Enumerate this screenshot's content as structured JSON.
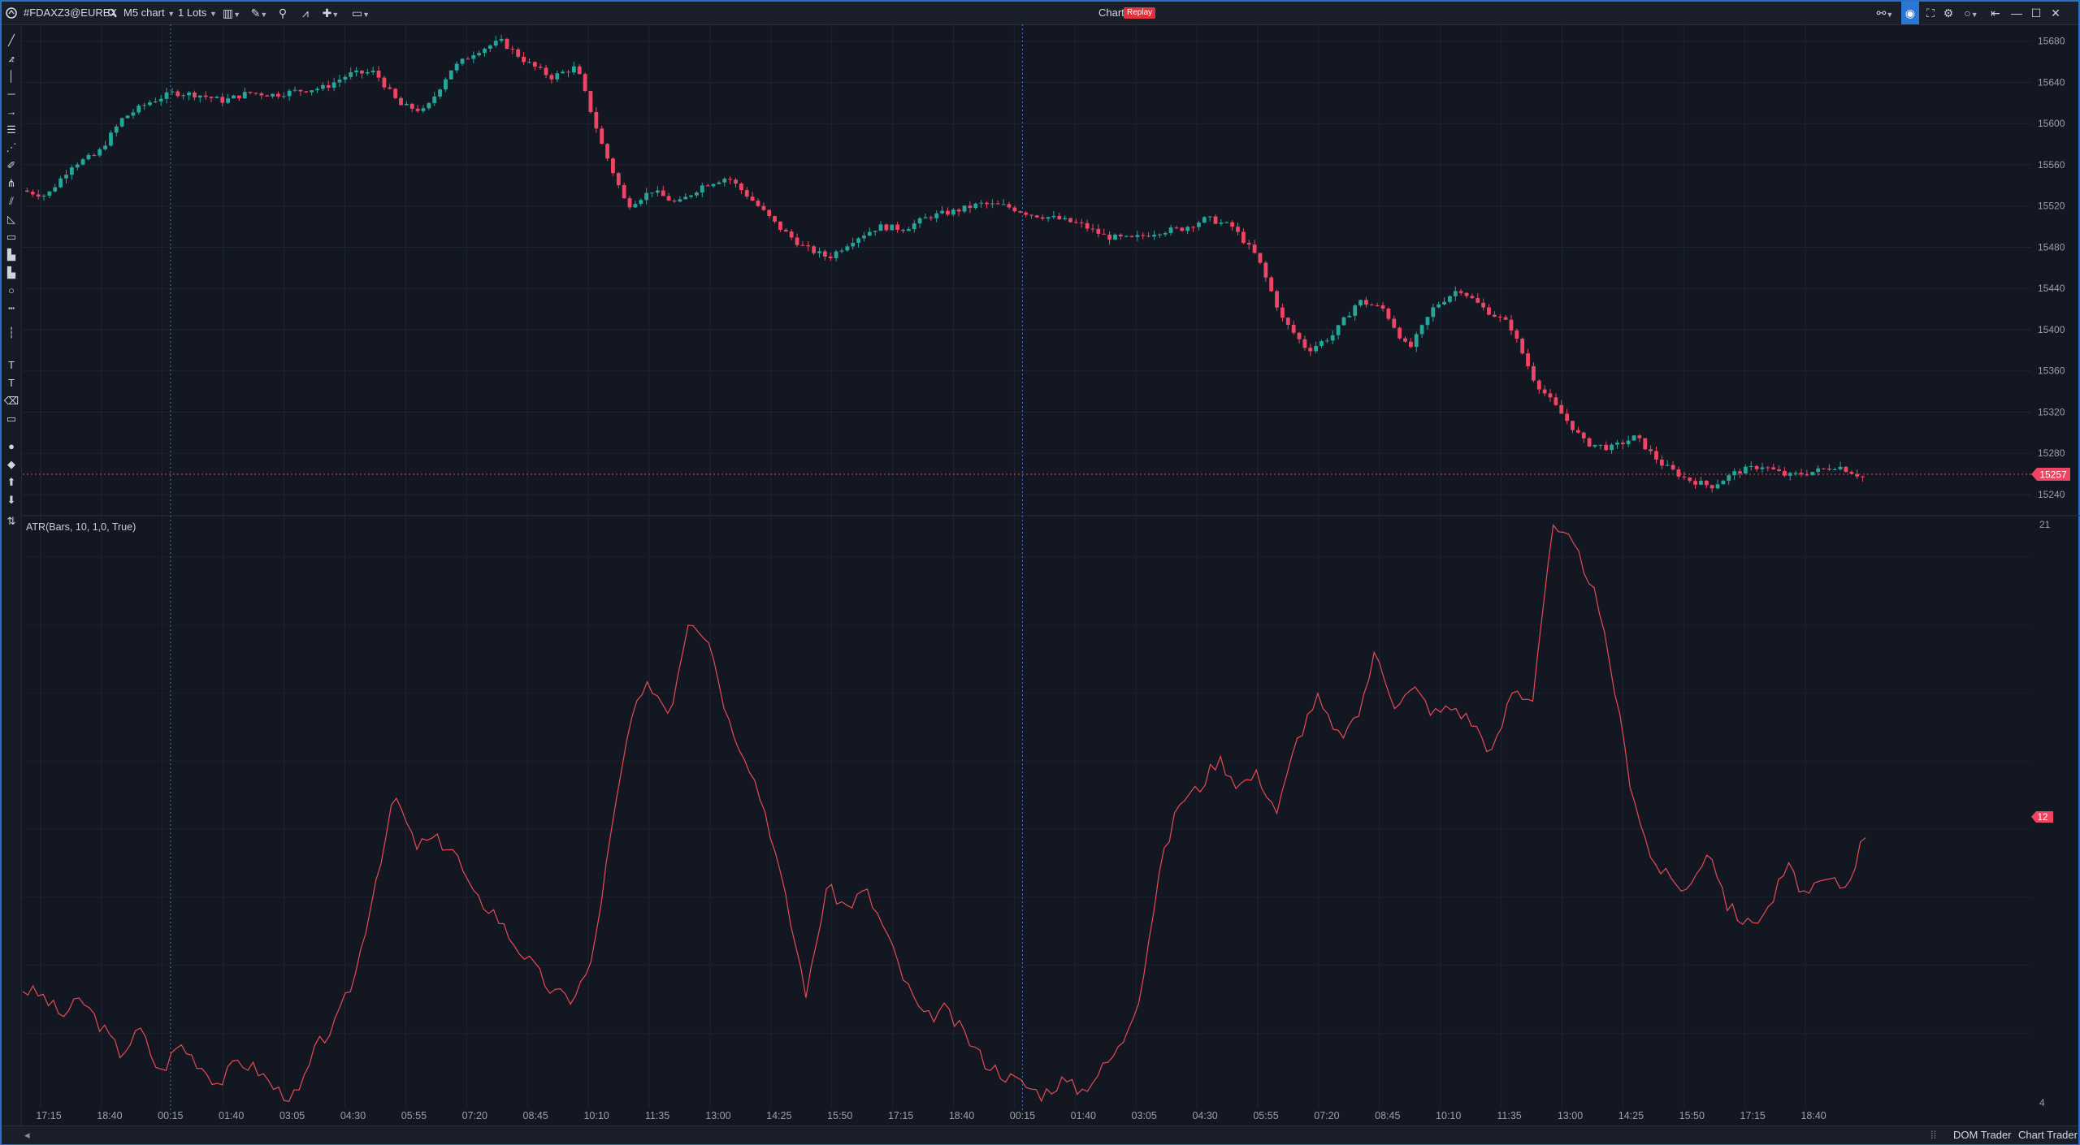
{
  "window": {
    "title": "Chart",
    "badge": "Replay"
  },
  "toolbar": {
    "symbol": "#FDAXZ3@EUREX",
    "timeframe": "M5 chart",
    "lots": "1 Lots"
  },
  "price_axis": {
    "ticks": [
      "15680",
      "15640",
      "15600",
      "15560",
      "15520",
      "15480",
      "15440",
      "15400",
      "15360",
      "15320",
      "15280",
      "15240"
    ],
    "current_price": "15257"
  },
  "indicator": {
    "title": "ATR(Bars, 10, 1,0, True)",
    "axis_top": "21",
    "axis_bottom": "4",
    "current_value": "12"
  },
  "time_axis": {
    "labels": [
      "17:15",
      "18:40",
      "00:15",
      "01:40",
      "03:05",
      "04:30",
      "05:55",
      "07:20",
      "08:45",
      "10:10",
      "11:35",
      "13:00",
      "14:25",
      "15:50",
      "17:15",
      "18:40",
      "00:15",
      "01:40",
      "03:05",
      "04:30",
      "05:55",
      "07:20",
      "08:45",
      "10:10",
      "11:35",
      "13:00",
      "14:25",
      "15:50",
      "17:15",
      "18:40"
    ]
  },
  "status": {
    "dom_trader": "DOM Trader",
    "chart_trader": "Chart Trader"
  },
  "colors": {
    "bull": "#26a69a",
    "bear": "#ef4565",
    "atr_line": "#e84a55",
    "background": "#131722",
    "session_line": "#3a78c8"
  },
  "chart_data": [
    {
      "type": "candlestick",
      "x_range": [
        "17:15",
        "19:10"
      ],
      "ylim": [
        15225,
        15690
      ],
      "current_price": 15257,
      "session_breaks_at": [
        "00:15",
        "00:15"
      ],
      "close_path": [
        15535,
        15530,
        15560,
        15570,
        15605,
        15620,
        15630,
        15628,
        15622,
        15630,
        15628,
        15632,
        15635,
        15648,
        15650,
        15618,
        15612,
        15652,
        15670,
        15680,
        15660,
        15645,
        15655,
        15580,
        15520,
        15535,
        15522,
        15540,
        15548,
        15525,
        15500,
        15480,
        15470,
        15488,
        15500,
        15498,
        15510,
        15515,
        15522,
        15520,
        15512,
        15508,
        15502,
        15490,
        15488,
        15495,
        15498,
        15508,
        15500,
        15470,
        15410,
        15380,
        15395,
        15428,
        15420,
        15380,
        15422,
        15440,
        15420,
        15405,
        15350,
        15320,
        15290,
        15285,
        15296,
        15270,
        15255,
        15248,
        15262,
        15268,
        15258,
        15262,
        15268,
        15257
      ]
    },
    {
      "type": "line",
      "title": "ATR(Bars, 10, 1,0, True)",
      "ylim": [
        4,
        21
      ],
      "current_value": 12,
      "series": [
        {
          "values": [
            7.3,
            7.1,
            6.5,
            7.0,
            6.2,
            5.4,
            6.1,
            4.8,
            5.7,
            5.1,
            4.5,
            5.2,
            4.9,
            4.3,
            4.1,
            5.6,
            6.3,
            7.8,
            10.5,
            13.0,
            11.5,
            11.7,
            11.4,
            10.0,
            9.6,
            8.7,
            8.0,
            7.2,
            7.0,
            8.0,
            11.8,
            15.2,
            16.3,
            15.4,
            18.3,
            17.6,
            15.2,
            14.0,
            12.3,
            9.7,
            7.1,
            10.3,
            9.7,
            10.2,
            9.0,
            7.5,
            6.4,
            6.7,
            6.0,
            5.2,
            4.8,
            4.5,
            4.2,
            4.6,
            4.3,
            4.9,
            5.6,
            7.2,
            10.8,
            12.8,
            13.2,
            14.1,
            13.3,
            13.6,
            12.5,
            14.6,
            15.9,
            14.7,
            15.1,
            17.2,
            15.7,
            16.1,
            15.4,
            15.6,
            15.1,
            14.2,
            16.1,
            15.8,
            20.8,
            20.4,
            19.3,
            16.8,
            13.4,
            11.2,
            10.5,
            10.2,
            11.5,
            9.7,
            9.2,
            9.6,
            10.9,
            10.0,
            10.5,
            10.3,
            11.9
          ]
        }
      ]
    }
  ]
}
